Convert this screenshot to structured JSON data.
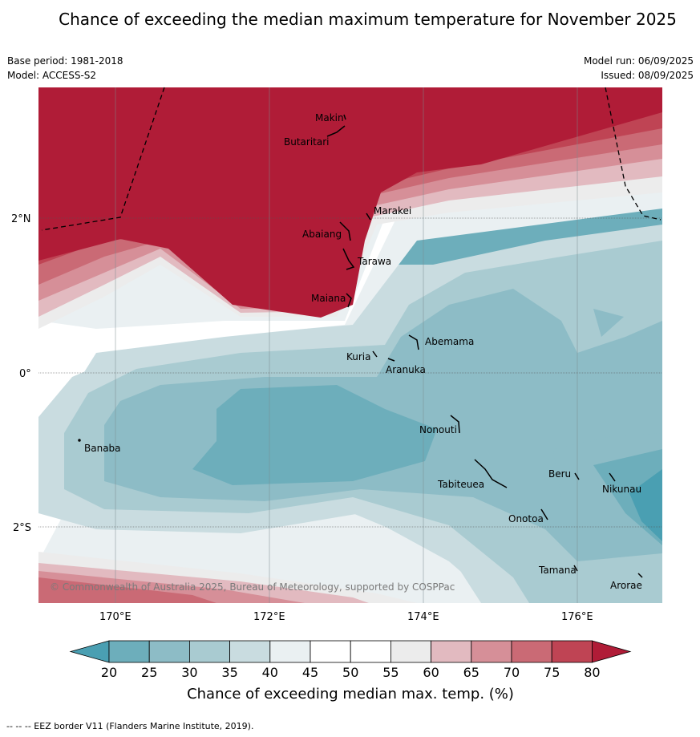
{
  "title": "Chance of exceeding the median maximum temperature for November 2025",
  "base_period": "Base period: 1981-2018",
  "model": "Model: ACCESS-S2",
  "model_run": "Model run: 06/09/2025",
  "issued": "Issued: 08/09/2025",
  "copyright": "© Commonwealth of Australia 2025, Bureau of Meteorology, supported by COSPPac",
  "footer": "--  --  -- EEZ border V11 (Flanders Marine Institute, 2019).",
  "map": {
    "lat_labels": [
      "2°N",
      "0°",
      "2°S"
    ],
    "lon_labels": [
      "170°E",
      "172°E",
      "174°E",
      "176°E"
    ],
    "places": [
      "Makin",
      "Butaritari",
      "Marakei",
      "Abaiang",
      "Tarawa",
      "Maiana",
      "Abemama",
      "Kuria",
      "Aranuka",
      "Banaba",
      "Nonouti",
      "Beru",
      "Nikunau",
      "Tabiteuea",
      "Onotoa",
      "Tamana",
      "Arorae"
    ]
  },
  "colorbar": {
    "title": "Chance of exceeding median max. temp. (%)",
    "ticks": [
      "20",
      "25",
      "30",
      "35",
      "40",
      "45",
      "50",
      "55",
      "60",
      "65",
      "70",
      "75",
      "80"
    ],
    "colors": [
      "#4a9fb2",
      "#6daebb",
      "#8dbcc6",
      "#a9cbd1",
      "#c9dce0",
      "#eaf0f2",
      "#ffffff",
      "#ffffff",
      "#ececec",
      "#e2bac0",
      "#d68f98",
      "#ca6a75",
      "#bf4454",
      "#b01c37"
    ]
  }
}
